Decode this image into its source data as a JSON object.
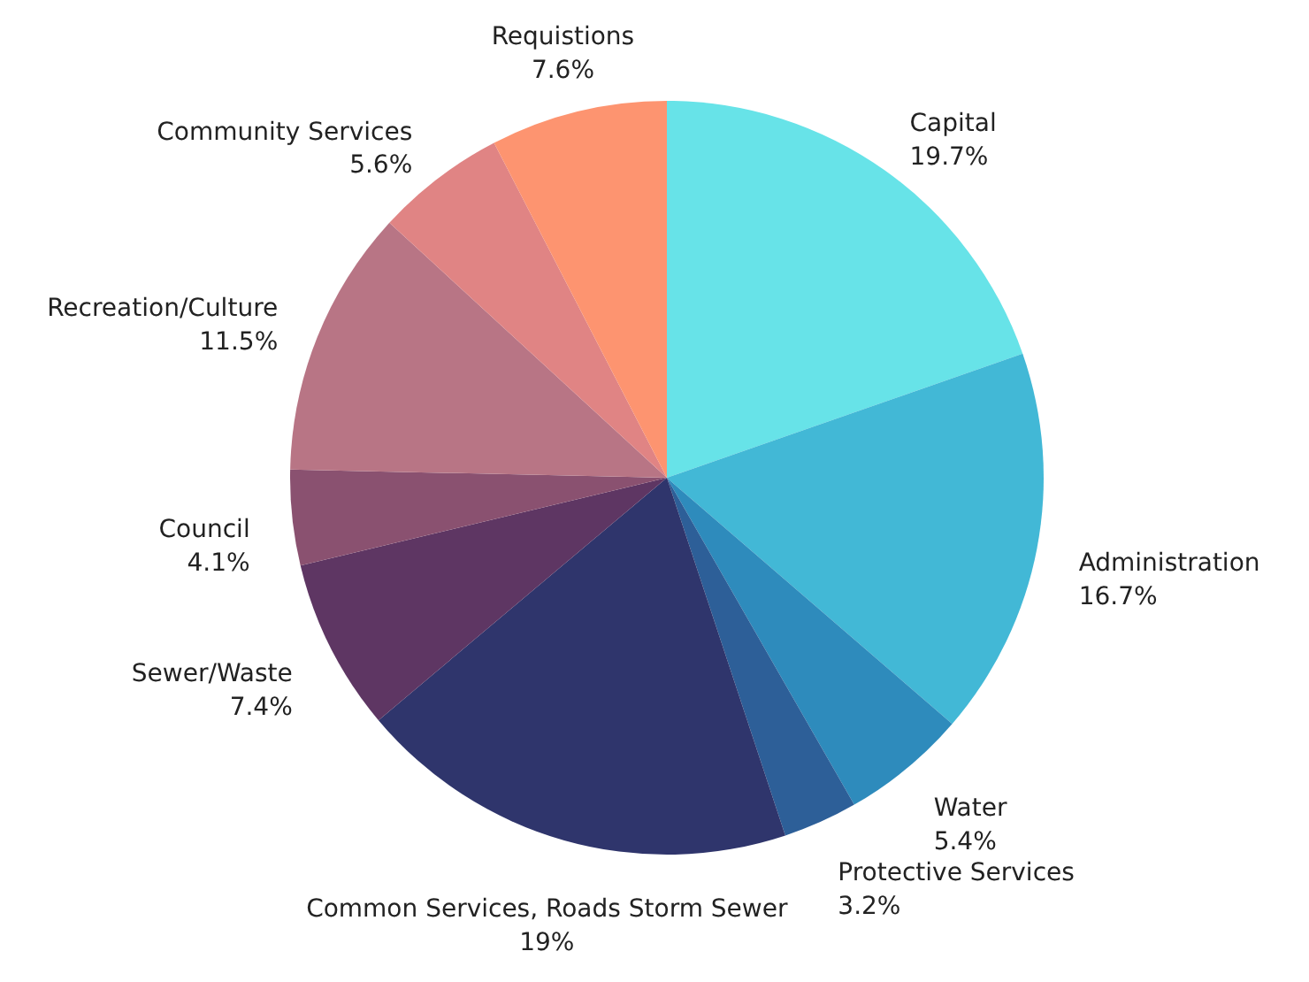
{
  "chart_data": {
    "type": "pie",
    "categories": [
      "Capital",
      "Administration",
      "Water",
      "Protective Services",
      "Common Services, Roads Storm Sewer",
      "Sewer/Waste",
      "Council",
      "Recreation/Culture",
      "Community Services",
      "Requistions"
    ],
    "values": [
      19.7,
      16.7,
      5.4,
      3.2,
      19,
      7.4,
      4.1,
      11.5,
      5.6,
      7.6
    ],
    "value_labels": [
      "19.7%",
      "16.7%",
      "5.4%",
      "3.2%",
      "19%",
      "7.4%",
      "4.1%",
      "11.5%",
      "5.6%",
      "7.6%"
    ],
    "colors": [
      "#67e3e8",
      "#42b8d6",
      "#2e8bbc",
      "#2d5f98",
      "#2f356c",
      "#5e3663",
      "#8a5170",
      "#b87585",
      "#e08484",
      "#fd9470"
    ],
    "legend": false
  }
}
